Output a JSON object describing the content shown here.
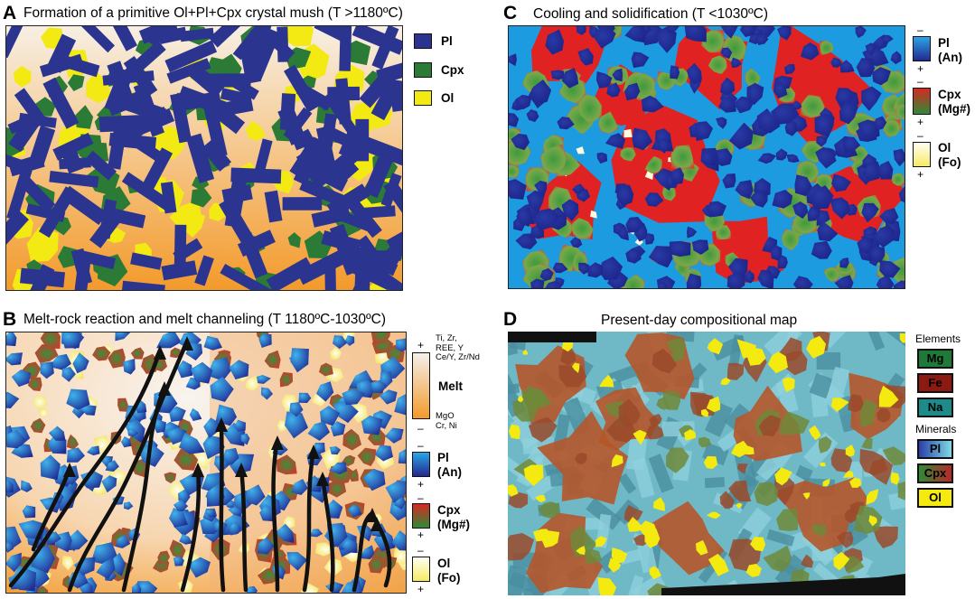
{
  "panels": {
    "a": {
      "letter": "A",
      "title": "Formation of a primitive Ol+Pl+Cpx crystal mush (T >1180ºC)"
    },
    "b": {
      "letter": "B",
      "title": "Melt-rock reaction and melt channeling (T 1180ºC-1030ºC)"
    },
    "c": {
      "letter": "C",
      "title": "Cooling and solidification (T <1030ºC)"
    },
    "d": {
      "letter": "D",
      "title": "Present-day compositional map"
    }
  },
  "legend_a": {
    "items": [
      {
        "label": "Pl",
        "color": "#2b3590"
      },
      {
        "label": "Cpx",
        "color": "#2b7a35"
      },
      {
        "label": "Ol",
        "color": "#f2ea12"
      }
    ]
  },
  "legend_b": {
    "plus": "+",
    "minus": "–",
    "melt_top": "Ti, Zr,\nREE, Y\nCe/Y, Zr/Nd",
    "melt_label": "Melt",
    "melt_bottom": "MgO\nCr, Ni",
    "pl_label": "Pl\n(An)",
    "cpx_label": "Cpx\n(Mg#)",
    "ol_label": "Ol\n(Fo)"
  },
  "legend_c": {
    "plus": "+",
    "minus": "–",
    "pl_label": "Pl\n(An)",
    "cpx_label": "Cpx\n(Mg#)",
    "ol_label": "Ol\n(Fo)"
  },
  "legend_d": {
    "elements_head": "Elements",
    "elements": [
      {
        "label": "Mg",
        "bg": "#1f7a3a",
        "fg": "#000000"
      },
      {
        "label": "Fe",
        "bg": "#8c1a12",
        "fg": "#000000"
      },
      {
        "label": "Na",
        "bg": "#1e8a8a",
        "fg": "#000000"
      }
    ],
    "minerals_head": "Minerals",
    "minerals": [
      {
        "label": "Pl",
        "bg": "linear-gradient(90deg,#2a3fa8,#7fd9e8)",
        "fg": "#000000"
      },
      {
        "label": "Cpx",
        "bg": "linear-gradient(90deg,#2f8a34,#b8282a)",
        "fg": "#000000"
      },
      {
        "label": "Ol",
        "bg": "#f4ea10",
        "fg": "#000000"
      }
    ]
  },
  "colors": {
    "pl": "#2b3590",
    "cpx": "#2b7a35",
    "ol": "#f2ea12",
    "melt_dark": "#f39a2a",
    "melt_light": "#f6f1ea",
    "c_bg": "#1d9be0",
    "c_red": "#e02222"
  }
}
